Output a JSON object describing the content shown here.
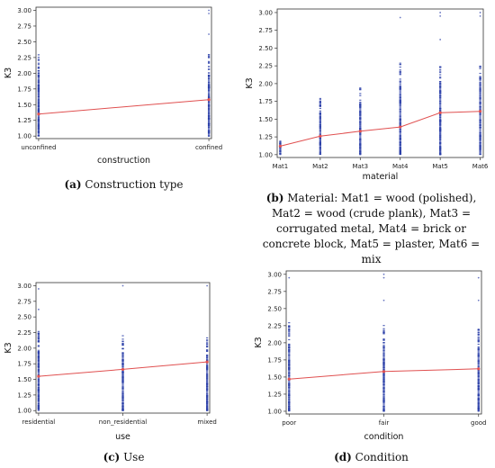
{
  "chart_data": [
    {
      "type": "scatter",
      "panel_id": "a",
      "caption_letter": "(a)",
      "caption_text": "Construction type",
      "xlabel": "construction",
      "ylabel": "K3",
      "categories": [
        "unconfined",
        "confined"
      ],
      "yticks": [
        "1.00",
        "1.25",
        "1.50",
        "1.75",
        "2.00",
        "2.25",
        "2.50",
        "2.75",
        "3.00"
      ],
      "ylim": [
        0.96,
        3.05
      ],
      "mean_line": [
        1.35,
        1.58
      ],
      "point_ranges": [
        [
          1.0,
          2.3
        ],
        [
          1.0,
          2.3
        ]
      ],
      "outliers": [
        [],
        [
          2.62,
          2.95,
          3.0
        ]
      ],
      "grid": false,
      "colors": {
        "points": "#2b3fa8",
        "mean": "#e05050"
      }
    },
    {
      "type": "scatter",
      "panel_id": "b",
      "caption_letter": "(b)",
      "caption_text": "Material: Mat1 = wood (polished), Mat2 = wood (crude plank), Mat3 = corrugated metal, Mat4 = brick or concrete block, Mat5 = plaster, Mat6 = mix",
      "xlabel": "material",
      "ylabel": "K3",
      "categories": [
        "Mat1",
        "Mat2",
        "Mat3",
        "Mat4",
        "Mat5",
        "Mat6"
      ],
      "yticks": [
        "1.00",
        "1.25",
        "1.50",
        "1.75",
        "2.00",
        "2.25",
        "2.50",
        "2.75",
        "3.00"
      ],
      "ylim": [
        0.96,
        3.05
      ],
      "mean_line": [
        1.12,
        1.26,
        1.33,
        1.39,
        1.59,
        1.61
      ],
      "point_ranges": [
        [
          1.0,
          1.25
        ],
        [
          1.0,
          1.8
        ],
        [
          1.0,
          1.95
        ],
        [
          1.0,
          2.3
        ],
        [
          1.0,
          2.3
        ],
        [
          1.0,
          2.25
        ]
      ],
      "outliers": [
        [],
        [],
        [],
        [
          2.93
        ],
        [
          2.62,
          2.95,
          3.0
        ],
        [
          2.95,
          3.0
        ]
      ],
      "grid": false,
      "colors": {
        "points": "#2b3fa8",
        "mean": "#e05050"
      }
    },
    {
      "type": "scatter",
      "panel_id": "c",
      "caption_letter": "(c)",
      "caption_text": "Use",
      "xlabel": "use",
      "ylabel": "K3",
      "categories": [
        "residential",
        "non_residential",
        "mixed"
      ],
      "yticks": [
        "1.00",
        "1.25",
        "1.50",
        "1.75",
        "2.00",
        "2.25",
        "2.50",
        "2.75",
        "3.00"
      ],
      "ylim": [
        0.96,
        3.05
      ],
      "mean_line": [
        1.55,
        1.66,
        1.78
      ],
      "point_ranges": [
        [
          1.0,
          2.3
        ],
        [
          1.0,
          2.25
        ],
        [
          1.0,
          2.2
        ]
      ],
      "outliers": [
        [
          2.62,
          2.95
        ],
        [
          3.0
        ],
        [
          3.0
        ]
      ],
      "grid": false,
      "colors": {
        "points": "#2b3fa8",
        "mean": "#e05050"
      }
    },
    {
      "type": "scatter",
      "panel_id": "d",
      "caption_letter": "(d)",
      "caption_text": "Condition",
      "xlabel": "condition",
      "ylabel": "K3",
      "categories": [
        "poor",
        "fair",
        "good"
      ],
      "yticks": [
        "1.00",
        "1.25",
        "1.50",
        "1.75",
        "2.00",
        "2.25",
        "2.50",
        "2.75",
        "3.00"
      ],
      "ylim": [
        0.96,
        3.05
      ],
      "mean_line": [
        1.47,
        1.58,
        1.62
      ],
      "point_ranges": [
        [
          1.0,
          2.3
        ],
        [
          1.0,
          2.3
        ],
        [
          1.0,
          2.25
        ]
      ],
      "outliers": [
        [
          2.95
        ],
        [
          2.62,
          2.95,
          3.0
        ],
        [
          2.62,
          2.95
        ]
      ],
      "grid": false,
      "colors": {
        "points": "#2b3fa8",
        "mean": "#e05050"
      }
    }
  ]
}
